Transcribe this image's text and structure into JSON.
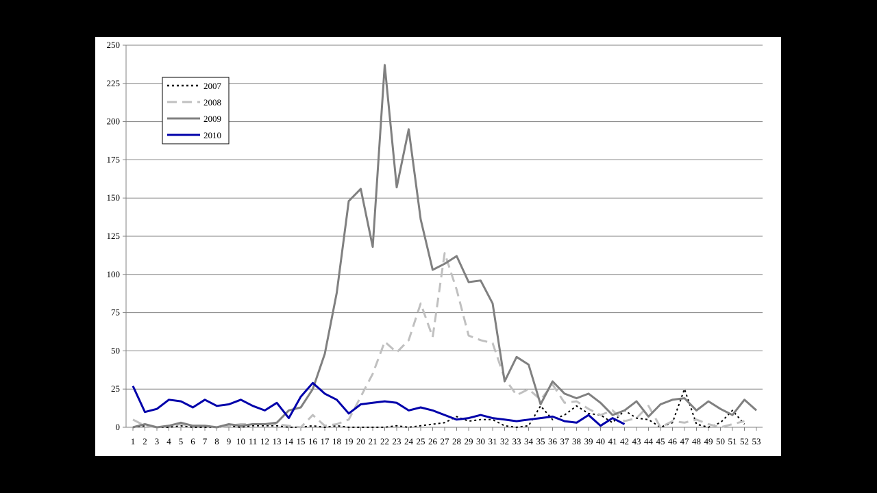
{
  "chart_data": {
    "type": "line",
    "title": "",
    "xlabel": "",
    "ylabel": "",
    "x": [
      1,
      2,
      3,
      4,
      5,
      6,
      7,
      8,
      9,
      10,
      11,
      12,
      13,
      14,
      15,
      16,
      17,
      18,
      19,
      20,
      21,
      22,
      23,
      24,
      25,
      26,
      27,
      28,
      29,
      30,
      31,
      32,
      33,
      34,
      35,
      36,
      37,
      38,
      39,
      40,
      41,
      42,
      43,
      44,
      45,
      46,
      47,
      48,
      49,
      50,
      51,
      52,
      53
    ],
    "xticks": [
      "1",
      "2",
      "3",
      "4",
      "5",
      "6",
      "7",
      "8",
      "9",
      "10",
      "11",
      "12",
      "13",
      "14",
      "15",
      "16",
      "17",
      "18",
      "19",
      "20",
      "21",
      "22",
      "23",
      "24",
      "25",
      "26",
      "27",
      "28",
      "29",
      "30",
      "31",
      "32",
      "33",
      "34",
      "35",
      "36",
      "37",
      "38",
      "39",
      "40",
      "41",
      "42",
      "43",
      "44",
      "45",
      "46",
      "47",
      "48",
      "49",
      "50",
      "51",
      "52",
      "53"
    ],
    "ylim": [
      0,
      250
    ],
    "yticks": [
      "0",
      "25",
      "50",
      "75",
      "100",
      "125",
      "150",
      "175",
      "200",
      "225",
      "250"
    ],
    "grid": true,
    "legend_position": "top-left",
    "series": [
      {
        "name": "2007",
        "color": "#000000",
        "style": "dotted",
        "values": [
          0,
          1,
          0,
          0,
          1,
          0,
          0,
          0,
          1,
          0,
          1,
          1,
          1,
          0,
          0,
          1,
          0,
          1,
          0,
          0,
          0,
          0,
          1,
          0,
          1,
          2,
          3,
          7,
          4,
          5,
          5,
          1,
          0,
          1,
          14,
          5,
          8,
          14,
          9,
          8,
          3,
          11,
          6,
          5,
          0,
          3,
          25,
          2,
          0,
          3,
          11,
          2,
          null
        ]
      },
      {
        "name": "2008",
        "color": "#c0c0c0",
        "style": "dashed",
        "values": [
          5,
          1,
          0,
          1,
          2,
          1,
          1,
          0,
          1,
          2,
          2,
          2,
          2,
          1,
          0,
          8,
          1,
          2,
          5,
          20,
          35,
          56,
          49,
          57,
          81,
          59,
          114,
          90,
          60,
          57,
          55,
          32,
          21,
          25,
          18,
          28,
          16,
          17,
          12,
          8,
          11,
          4,
          6,
          14,
          0,
          4,
          3,
          5,
          2,
          0,
          2,
          4,
          null
        ]
      },
      {
        "name": "2009",
        "color": "#808080",
        "style": "solid",
        "values": [
          0,
          2,
          0,
          1,
          3,
          1,
          1,
          0,
          2,
          1,
          2,
          2,
          3,
          11,
          13,
          25,
          48,
          88,
          148,
          156,
          118,
          237,
          157,
          195,
          136,
          103,
          107,
          112,
          95,
          96,
          81,
          30,
          46,
          41,
          15,
          30,
          22,
          19,
          22,
          16,
          8,
          11,
          17,
          7,
          15,
          18,
          19,
          11,
          17,
          12,
          8,
          18,
          11
        ]
      },
      {
        "name": "2010",
        "color": "#0000aa",
        "style": "solid",
        "values": [
          27,
          10,
          12,
          18,
          17,
          13,
          18,
          14,
          15,
          18,
          14,
          11,
          16,
          6,
          20,
          29,
          22,
          18,
          9,
          15,
          16,
          17,
          16,
          11,
          13,
          11,
          8,
          5,
          6,
          8,
          6,
          5,
          4,
          5,
          6,
          7,
          4,
          3,
          8,
          1,
          6,
          2,
          null,
          null,
          null,
          null,
          null,
          null,
          null,
          null,
          null,
          null,
          null
        ]
      }
    ]
  }
}
